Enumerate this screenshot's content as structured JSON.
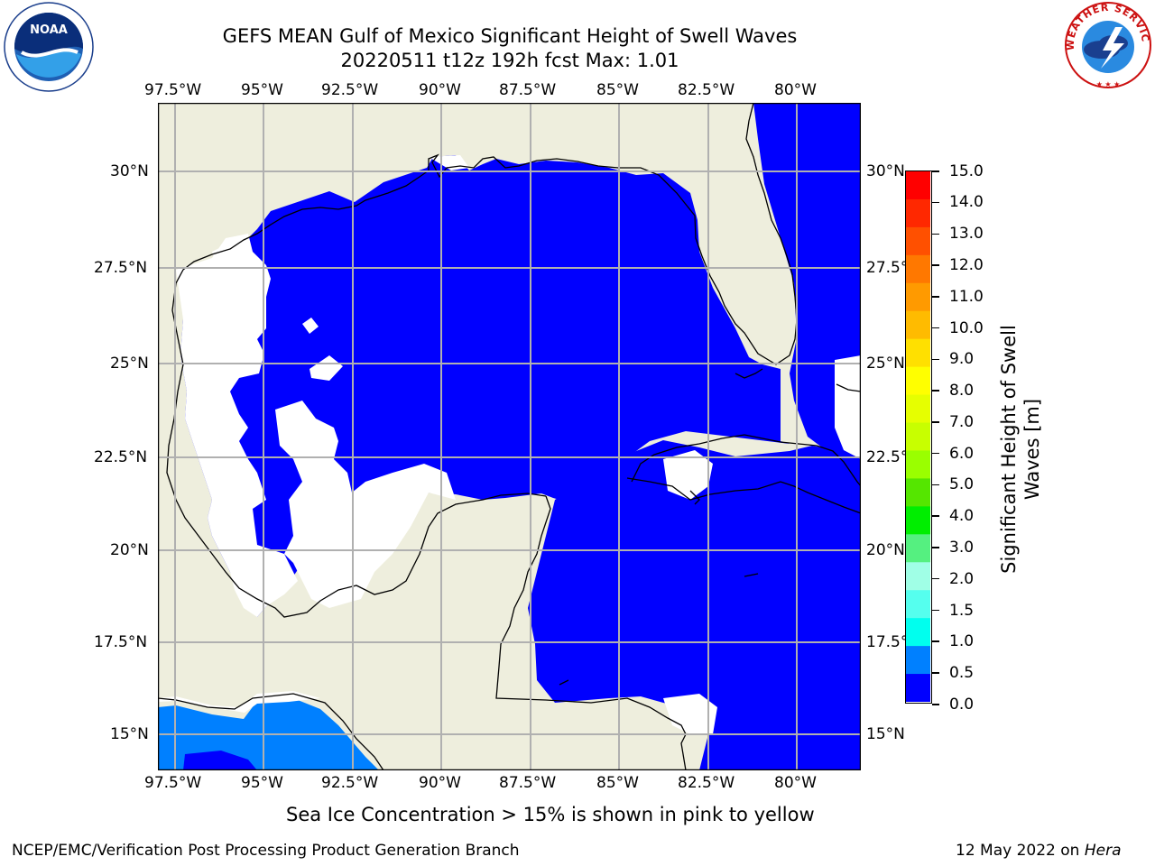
{
  "title": {
    "line1": "GEFS MEAN Gulf of Mexico Significant Height of Swell Waves",
    "line2": "20220511 t12z 192h fcst   Max: 1.01"
  },
  "logos": {
    "left": {
      "icon": "noaa-logo",
      "text": "NOAA",
      "ring_text": "NATIONAL OCEANIC AND ATMOSPHERIC ADMINISTRATION · U.S. DEPARTMENT OF COMMERCE"
    },
    "right": {
      "icon": "nws-logo",
      "ring_text": "NATIONAL WEATHER SERVICE"
    }
  },
  "map": {
    "lon_ticks": [
      "97.5°W",
      "95°W",
      "92.5°W",
      "90°W",
      "87.5°W",
      "85°W",
      "82.5°W",
      "80°W"
    ],
    "lat_ticks": [
      "30°N",
      "27.5°N",
      "25°N",
      "22.5°N",
      "20°N",
      "17.5°N",
      "15°N"
    ],
    "colors": {
      "land": "#eeeedd",
      "ocean_low": "#0000ff",
      "ocean_mid": "#0080ff",
      "no_data": "#ffffff",
      "grid": "#b0b0b0",
      "coast": "#000000"
    }
  },
  "colorbar": {
    "label_line1": "Significant Height of Swell",
    "label_line2": "Waves [m]",
    "ticks": [
      "15.0",
      "14.0",
      "13.0",
      "12.0",
      "11.0",
      "10.0",
      "9.0",
      "8.0",
      "7.0",
      "6.0",
      "5.0",
      "4.0",
      "3.0",
      "2.0",
      "1.5",
      "1.0",
      "0.5",
      "0.0"
    ],
    "colors_top_to_bottom": [
      "#ff0000",
      "#ff2800",
      "#ff5000",
      "#ff7800",
      "#ff9a00",
      "#ffbb00",
      "#ffe000",
      "#ffff00",
      "#e6ff00",
      "#c8ff00",
      "#9aff00",
      "#55e600",
      "#00ee00",
      "#55f080",
      "#a0ffe6",
      "#55ffee",
      "#00ffee",
      "#0080ff",
      "#0000ff"
    ]
  },
  "note": "Sea Ice Concentration > 15% is shown in pink to yellow",
  "footer": {
    "left": "NCEP/EMC/Verification Post Processing Product Generation Branch",
    "date": "12 May 2022 on",
    "machine": "Hera"
  }
}
